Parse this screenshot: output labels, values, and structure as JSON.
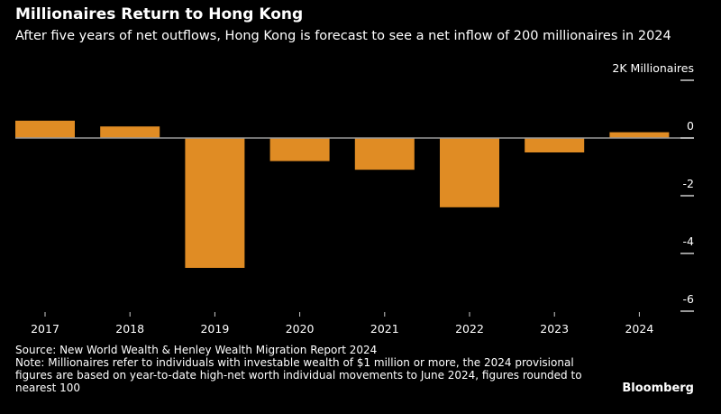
{
  "title": "Millionaires Return to Hong Kong",
  "subtitle": "After five years of net outflows, Hong Kong is forecast to see a net inflow of 200 millionaires in 2024",
  "source": "Source: New World Wealth & Henley Wealth Migration Report 2024",
  "note": "Note: Millionaires refer to individuals with investable wealth of $1 million or more, the 2024 provisional figures are based on year-to-date high-net worth individual movements to June 2024, figures rounded to nearest 100",
  "brand": "Bloomberg",
  "chart_data": {
    "type": "bar",
    "categories": [
      "2017",
      "2018",
      "2019",
      "2020",
      "2021",
      "2022",
      "2023",
      "2024"
    ],
    "values": [
      0.6,
      0.4,
      -4.5,
      -0.8,
      -1.1,
      -2.4,
      -0.5,
      0.2
    ],
    "ylabel": "Millionaires",
    "yunit": "K",
    "ylim": [
      -6,
      2
    ],
    "yticks": [
      2,
      0,
      -2,
      -4,
      -6
    ],
    "ytick_labels": [
      "2K",
      "0",
      "-2",
      "-4",
      "-6"
    ],
    "bar_color": "#e08c24",
    "grid": false
  }
}
